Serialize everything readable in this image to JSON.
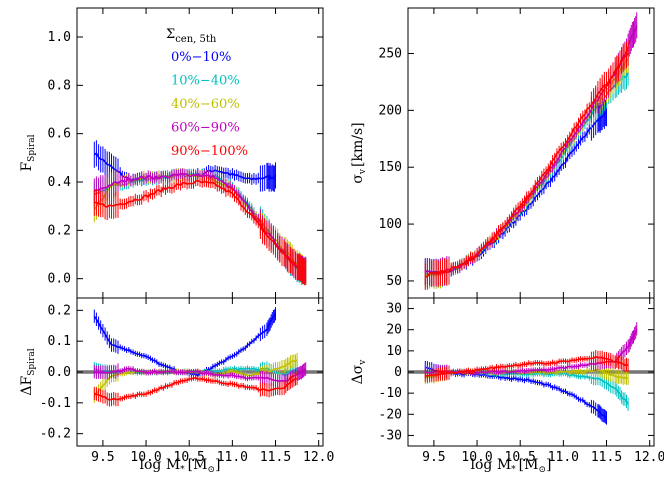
{
  "figure": {
    "legend_title": "Σ",
    "legend_title_sub": "cen, 5th",
    "x_label": "log M",
    "x_label_sub": "*",
    "x_label_unit": "[M",
    "x_label_unit_sub": "⊙",
    "x_label_unit_close": "]"
  },
  "chart_data": [
    {
      "type": "line",
      "panel": "top-left",
      "ylabel": "F",
      "ylabel_sub": "Spiral",
      "xlim": [
        9.2,
        12.05
      ],
      "ylim": [
        -0.08,
        1.12
      ],
      "xticks": [
        9.5,
        10.0,
        10.5,
        11.0,
        11.5,
        12.0
      ],
      "yticks": [
        0.0,
        0.2,
        0.4,
        0.6,
        0.8,
        1.0
      ],
      "legend": {
        "placement": "top-center",
        "entries": [
          "0%−10%",
          "10%−40%",
          "40%−60%",
          "60%−90%",
          "90%−100%"
        ]
      },
      "series": [
        {
          "name": "0%−10%",
          "color": "#0000ff",
          "x": [
            9.4,
            9.6,
            9.8,
            10.0,
            10.2,
            10.4,
            10.6,
            10.8,
            11.0,
            11.2,
            11.4,
            11.5
          ],
          "y": [
            0.52,
            0.46,
            0.41,
            0.41,
            0.42,
            0.43,
            0.43,
            0.45,
            0.43,
            0.41,
            0.42,
            0.42
          ]
        },
        {
          "name": "10%−40%",
          "color": "#00c0c0",
          "x": [
            9.4,
            9.6,
            9.8,
            10.0,
            10.2,
            10.4,
            10.6,
            10.8,
            11.0,
            11.2,
            11.4,
            11.6,
            11.75,
            11.85
          ],
          "y": [
            0.35,
            0.38,
            0.4,
            0.41,
            0.42,
            0.43,
            0.43,
            0.42,
            0.38,
            0.3,
            0.2,
            0.1,
            0.04,
            0.03
          ]
        },
        {
          "name": "40%−60%",
          "color": "#c0c000",
          "x": [
            9.4,
            9.6,
            9.8,
            10.0,
            10.2,
            10.4,
            10.6,
            10.8,
            11.0,
            11.2,
            11.4,
            11.6,
            11.75,
            11.85
          ],
          "y": [
            0.29,
            0.38,
            0.41,
            0.42,
            0.42,
            0.43,
            0.43,
            0.41,
            0.37,
            0.29,
            0.19,
            0.12,
            0.06,
            0.03
          ]
        },
        {
          "name": "60%−90%",
          "color": "#c000c0",
          "x": [
            9.4,
            9.6,
            9.8,
            10.0,
            10.2,
            10.4,
            10.6,
            10.8,
            11.0,
            11.2,
            11.4,
            11.6,
            11.75,
            11.85
          ],
          "y": [
            0.36,
            0.39,
            0.41,
            0.42,
            0.42,
            0.43,
            0.43,
            0.42,
            0.37,
            0.29,
            0.19,
            0.11,
            0.05,
            0.03
          ]
        },
        {
          "name": "90%−100%",
          "color": "#ff0000",
          "x": [
            9.4,
            9.6,
            9.8,
            10.0,
            10.2,
            10.4,
            10.6,
            10.8,
            11.0,
            11.2,
            11.4,
            11.6,
            11.75,
            11.85
          ],
          "y": [
            0.31,
            0.3,
            0.32,
            0.34,
            0.37,
            0.39,
            0.4,
            0.39,
            0.35,
            0.27,
            0.18,
            0.1,
            0.05,
            0.03
          ]
        }
      ]
    },
    {
      "type": "line",
      "panel": "bottom-left",
      "ylabel": "ΔF",
      "ylabel_sub": "Spiral",
      "xlim": [
        9.2,
        12.05
      ],
      "ylim": [
        -0.24,
        0.24
      ],
      "xticks": [
        9.5,
        10.0,
        10.5,
        11.0,
        11.5,
        12.0
      ],
      "yticks": [
        -0.2,
        -0.1,
        0.0,
        0.1,
        0.2
      ],
      "series": [
        {
          "name": "0%−10%",
          "color": "#0000ff",
          "x": [
            9.4,
            9.6,
            9.8,
            10.0,
            10.2,
            10.4,
            10.6,
            10.8,
            11.0,
            11.2,
            11.4,
            11.5
          ],
          "y": [
            0.18,
            0.09,
            0.07,
            0.05,
            0.02,
            0.0,
            -0.01,
            0.02,
            0.05,
            0.09,
            0.14,
            0.19
          ]
        },
        {
          "name": "10%−40%",
          "color": "#00c0c0",
          "x": [
            9.4,
            9.6,
            9.8,
            10.0,
            10.2,
            10.4,
            10.6,
            10.8,
            11.0,
            11.2,
            11.4,
            11.6,
            11.75
          ],
          "y": [
            0.01,
            0.0,
            0.0,
            0.0,
            0.0,
            0.0,
            0.0,
            0.0,
            0.01,
            0.01,
            0.01,
            -0.01,
            0.01
          ]
        },
        {
          "name": "40%−60%",
          "color": "#c0c000",
          "x": [
            9.4,
            9.6,
            9.8,
            10.0,
            10.2,
            10.4,
            10.6,
            10.8,
            11.0,
            11.2,
            11.4,
            11.6,
            11.75
          ],
          "y": [
            -0.08,
            -0.01,
            0.0,
            0.0,
            0.0,
            0.0,
            0.0,
            -0.01,
            0.0,
            -0.01,
            0.0,
            0.02,
            0.04
          ]
        },
        {
          "name": "60%−90%",
          "color": "#c000c0",
          "x": [
            9.4,
            9.6,
            9.8,
            10.0,
            10.2,
            10.4,
            10.6,
            10.8,
            11.0,
            11.2,
            11.4,
            11.6,
            11.75,
            11.85
          ],
          "y": [
            0.0,
            0.0,
            0.01,
            0.0,
            0.0,
            0.0,
            0.0,
            -0.01,
            -0.01,
            -0.02,
            -0.02,
            -0.03,
            -0.01,
            0.01
          ]
        },
        {
          "name": "90%−100%",
          "color": "#ff0000",
          "x": [
            9.4,
            9.6,
            9.8,
            10.0,
            10.2,
            10.4,
            10.6,
            10.8,
            11.0,
            11.2,
            11.4,
            11.6,
            11.75
          ],
          "y": [
            -0.07,
            -0.09,
            -0.08,
            -0.07,
            -0.05,
            -0.03,
            -0.02,
            -0.03,
            -0.04,
            -0.05,
            -0.06,
            -0.05,
            -0.02
          ]
        }
      ]
    },
    {
      "type": "line",
      "panel": "top-right",
      "ylabel": "σ",
      "ylabel_sub": "v",
      "ylabel_unit": "[km/s]",
      "xlim": [
        9.2,
        12.05
      ],
      "ylim": [
        35,
        290
      ],
      "xticks": [
        9.5,
        10.0,
        10.5,
        11.0,
        11.5,
        12.0
      ],
      "yticks": [
        50,
        100,
        150,
        200,
        250
      ],
      "series": [
        {
          "name": "0%−10%",
          "color": "#0000ff",
          "x": [
            9.4,
            9.6,
            9.8,
            10.0,
            10.2,
            10.4,
            10.6,
            10.8,
            11.0,
            11.2,
            11.4,
            11.5
          ],
          "y": [
            58,
            57,
            62,
            72,
            85,
            100,
            116,
            134,
            153,
            173,
            191,
            198
          ]
        },
        {
          "name": "10%−40%",
          "color": "#00c0c0",
          "x": [
            9.4,
            9.6,
            9.8,
            10.0,
            10.2,
            10.4,
            10.6,
            10.8,
            11.0,
            11.2,
            11.4,
            11.6,
            11.75
          ],
          "y": [
            56,
            57,
            63,
            73,
            87,
            103,
            121,
            140,
            161,
            183,
            204,
            223,
            232
          ]
        },
        {
          "name": "40%−60%",
          "color": "#c0c000",
          "x": [
            9.4,
            9.6,
            9.8,
            10.0,
            10.2,
            10.4,
            10.6,
            10.8,
            11.0,
            11.2,
            11.4,
            11.6,
            11.75
          ],
          "y": [
            54,
            56,
            63,
            73,
            88,
            104,
            122,
            142,
            163,
            185,
            207,
            228,
            245
          ]
        },
        {
          "name": "60%−90%",
          "color": "#c000c0",
          "x": [
            9.4,
            9.6,
            9.8,
            10.0,
            10.2,
            10.4,
            10.6,
            10.8,
            11.0,
            11.2,
            11.4,
            11.6,
            11.75,
            11.85
          ],
          "y": [
            57,
            58,
            63,
            73,
            88,
            105,
            123,
            143,
            165,
            187,
            210,
            232,
            255,
            275
          ]
        },
        {
          "name": "90%−100%",
          "color": "#ff0000",
          "x": [
            9.4,
            9.6,
            9.8,
            10.0,
            10.2,
            10.4,
            10.6,
            10.8,
            11.0,
            11.2,
            11.4,
            11.6,
            11.75
          ],
          "y": [
            55,
            57,
            63,
            74,
            89,
            107,
            126,
            147,
            169,
            192,
            214,
            234,
            250
          ]
        }
      ]
    },
    {
      "type": "line",
      "panel": "bottom-right",
      "ylabel": "Δσ",
      "ylabel_sub": "v",
      "xlim": [
        9.2,
        12.05
      ],
      "ylim": [
        -35,
        35
      ],
      "xticks": [
        9.5,
        10.0,
        10.5,
        11.0,
        11.5,
        12.0
      ],
      "yticks": [
        -30,
        -20,
        -10,
        0,
        10,
        20,
        30
      ],
      "series": [
        {
          "name": "0%−10%",
          "color": "#0000ff",
          "x": [
            9.4,
            9.6,
            9.8,
            10.0,
            10.2,
            10.4,
            10.6,
            10.8,
            11.0,
            11.2,
            11.4,
            11.5
          ],
          "y": [
            2,
            0,
            -1,
            -1,
            -2,
            -3,
            -4,
            -6,
            -9,
            -13,
            -18,
            -22
          ]
        },
        {
          "name": "10%−40%",
          "color": "#00c0c0",
          "x": [
            9.4,
            9.6,
            9.8,
            10.0,
            10.2,
            10.4,
            10.6,
            10.8,
            11.0,
            11.2,
            11.4,
            11.6,
            11.75
          ],
          "y": [
            0,
            0,
            0,
            0,
            -1,
            -1,
            -1,
            -1,
            -1,
            -2,
            -3,
            -8,
            -15
          ]
        },
        {
          "name": "40%−60%",
          "color": "#c0c000",
          "x": [
            9.4,
            9.6,
            9.8,
            10.0,
            10.2,
            10.4,
            10.6,
            10.8,
            11.0,
            11.2,
            11.4,
            11.6,
            11.75
          ],
          "y": [
            -3,
            -1,
            0,
            0,
            0,
            0,
            0,
            0,
            0,
            0,
            1,
            -2,
            -3
          ]
        },
        {
          "name": "60%−90%",
          "color": "#c000c0",
          "x": [
            9.4,
            9.6,
            9.8,
            10.0,
            10.2,
            10.4,
            10.6,
            10.8,
            11.0,
            11.2,
            11.4,
            11.6,
            11.75,
            11.85
          ],
          "y": [
            0,
            0,
            0,
            0,
            0,
            0,
            1,
            1,
            2,
            3,
            4,
            5,
            12,
            20
          ]
        },
        {
          "name": "90%−100%",
          "color": "#ff0000",
          "x": [
            9.4,
            9.6,
            9.8,
            10.0,
            10.2,
            10.4,
            10.6,
            10.8,
            11.0,
            11.2,
            11.4,
            11.6,
            11.75
          ],
          "y": [
            -2,
            -1,
            0,
            1,
            2,
            3,
            4,
            4,
            5,
            6,
            7,
            5,
            3
          ]
        }
      ]
    }
  ]
}
